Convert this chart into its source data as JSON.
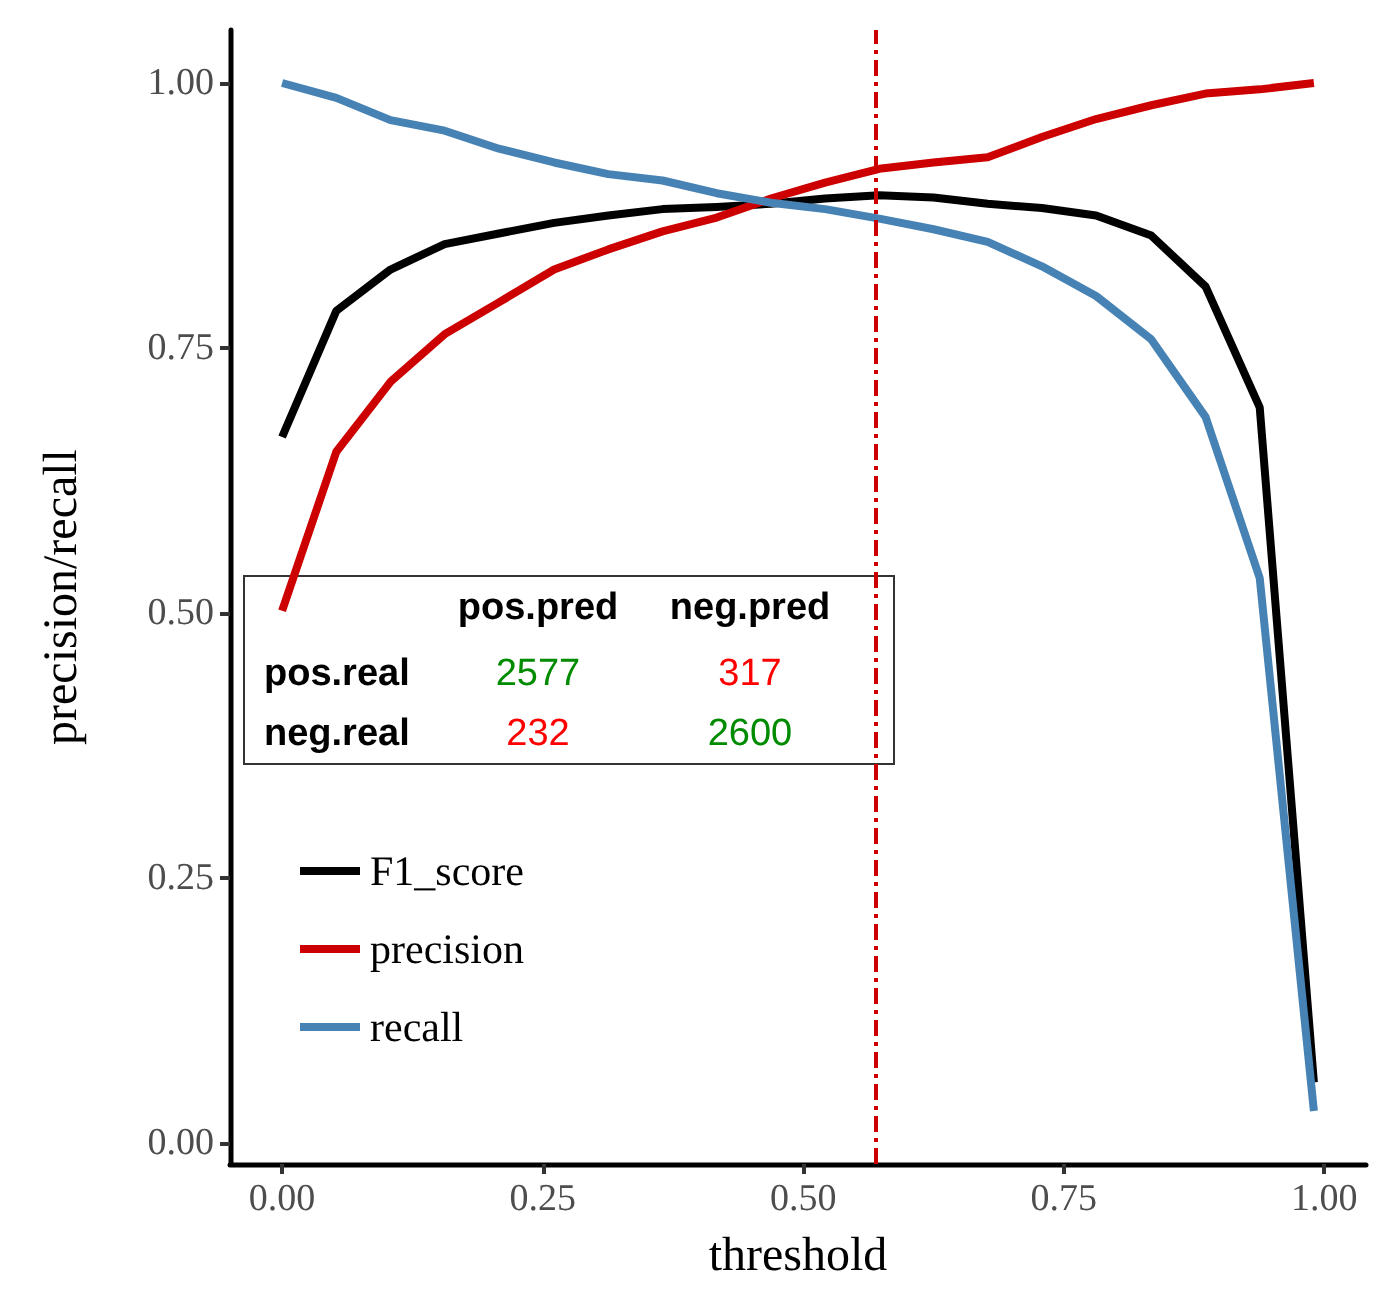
{
  "chart_data": {
    "type": "line",
    "xlabel": "threshold",
    "ylabel": "precision/recall",
    "x": [
      0,
      0.052,
      0.104,
      0.156,
      0.208,
      0.261,
      0.313,
      0.365,
      0.417,
      0.469,
      0.521,
      0.573,
      0.625,
      0.677,
      0.729,
      0.781,
      0.834,
      0.886,
      0.938,
      0.99
    ],
    "series": [
      {
        "name": "F1_score",
        "color": "#000000",
        "values": [
          0.666,
          0.785,
          0.824,
          0.848,
          0.858,
          0.868,
          0.875,
          0.881,
          0.883,
          0.886,
          0.891,
          0.894,
          0.892,
          0.886,
          0.882,
          0.875,
          0.856,
          0.808,
          0.694,
          0.057
        ]
      },
      {
        "name": "precision",
        "color": "#cc0000",
        "values": [
          0.502,
          0.652,
          0.718,
          0.763,
          0.793,
          0.824,
          0.843,
          0.86,
          0.873,
          0.891,
          0.906,
          0.919,
          0.925,
          0.93,
          0.949,
          0.966,
          0.979,
          0.99,
          0.994,
          1.0
        ]
      },
      {
        "name": "recall",
        "color": "#4682b4",
        "values": [
          1.0,
          0.986,
          0.965,
          0.955,
          0.938,
          0.925,
          0.914,
          0.908,
          0.896,
          0.887,
          0.881,
          0.872,
          0.862,
          0.85,
          0.827,
          0.799,
          0.758,
          0.685,
          0.533,
          0.03
        ]
      }
    ],
    "xlim": [
      -0.05,
      1.04
    ],
    "ylim": [
      -0.02,
      1.05
    ],
    "xticks": [
      {
        "value": 0,
        "label": "0.00"
      },
      {
        "value": 0.25,
        "label": "0.25"
      },
      {
        "value": 0.5,
        "label": "0.50"
      },
      {
        "value": 0.75,
        "label": "0.75"
      },
      {
        "value": 1,
        "label": "1.00"
      }
    ],
    "yticks": [
      {
        "value": 0,
        "label": "0.00"
      },
      {
        "value": 0.25,
        "label": "0.25"
      },
      {
        "value": 0.5,
        "label": "0.50"
      },
      {
        "value": 0.75,
        "label": "0.75"
      },
      {
        "value": 1,
        "label": "1.00"
      }
    ],
    "grid": false,
    "legend": "bottom left",
    "ref_lines": [
      {
        "axis": "x",
        "value": 0.573,
        "color": "#cc0000",
        "line_style": "dashed"
      }
    ],
    "annotations": [
      "pos.pred",
      "neg.pred",
      "pos.real",
      "2577",
      "317",
      "neg.real",
      "232",
      "2600"
    ]
  }
}
